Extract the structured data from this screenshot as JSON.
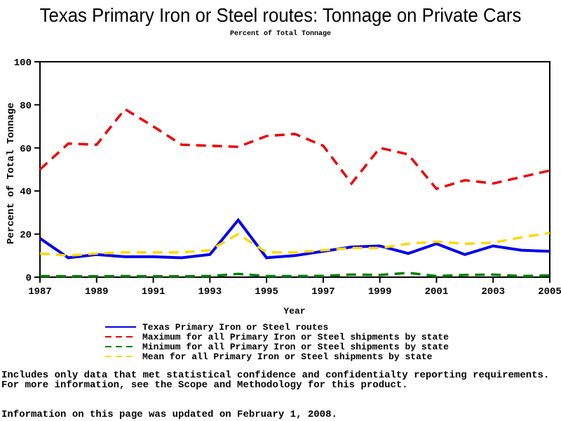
{
  "header": {
    "title": "Texas Primary Iron or Steel routes: Tonnage on Private Cars",
    "subtitle": "Percent of Total Tonnage"
  },
  "chart_data": {
    "type": "line",
    "title": "Texas Primary Iron or Steel routes: Tonnage on Private Cars",
    "subtitle": "Percent of Total Tonnage",
    "xlabel": "Year",
    "ylabel": "Percent of Total Tonnage",
    "ylim": [
      0,
      100
    ],
    "yticks": [
      0,
      20,
      40,
      60,
      80,
      100
    ],
    "xticks": [
      1987,
      1989,
      1991,
      1993,
      1995,
      1997,
      1999,
      2001,
      2003,
      2005
    ],
    "grid": false,
    "legend_position": "bottom",
    "x": [
      1987,
      1988,
      1989,
      1990,
      1991,
      1992,
      1993,
      1994,
      1995,
      1996,
      1997,
      1998,
      1999,
      2000,
      2001,
      2002,
      2003,
      2004,
      2005
    ],
    "series": [
      {
        "name": "Texas Primary Iron or Steel routes",
        "color": "#0000ee",
        "style": "solid",
        "width": 4,
        "values": [
          18,
          9,
          10.5,
          9.5,
          9.5,
          9,
          10.5,
          26.5,
          9,
          10,
          12,
          14,
          14.5,
          11,
          15.5,
          10.5,
          14.5,
          12.5,
          12
        ]
      },
      {
        "name": "Maximum for all Primary Iron or Steel shipments by state",
        "color": "#ee0000",
        "style": "dashed",
        "width": 3.5,
        "values": [
          50,
          62,
          61.5,
          78,
          70,
          61.5,
          61,
          60.5,
          65.5,
          66.5,
          61,
          43.5,
          60,
          57,
          41,
          45,
          43.5,
          46.5,
          49.5
        ]
      },
      {
        "name": "Minimum for all Primary Iron or Steel shipments by state",
        "color": "#008000",
        "style": "dashed",
        "width": 3.5,
        "values": [
          0.5,
          0.4,
          0.4,
          0.5,
          0.4,
          0.4,
          0.5,
          1.5,
          0.5,
          0.5,
          0.6,
          1.2,
          1,
          2,
          0.5,
          1,
          1.2,
          0.5,
          0.8
        ]
      },
      {
        "name": "Mean for all Primary Iron or Steel shipments by state",
        "color": "#ffd700",
        "style": "dashed",
        "width": 3.5,
        "values": [
          11,
          10,
          11,
          11.5,
          11.5,
          11.5,
          12.5,
          20,
          11.5,
          11.5,
          12.5,
          13.5,
          13.5,
          15.5,
          16.5,
          15.5,
          16,
          18.5,
          20.5
        ]
      }
    ]
  },
  "footer": {
    "note_line1": "Includes only data that met statistical confidence and confidentialty reporting requirements.",
    "note_line2": "For more information, see the Scope and Methodology for this product.",
    "updated": "Information on this page was updated on February 1, 2008."
  }
}
